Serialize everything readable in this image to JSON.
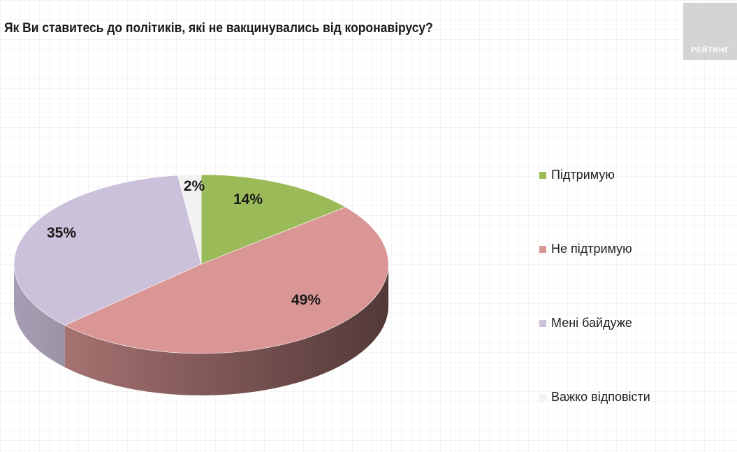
{
  "header": {
    "title": "Як Ви ставитесь до політиків, які не вакцинувались від коронавірусу?",
    "logo_text": "РЕЙТИНГ"
  },
  "chart_data": {
    "type": "pie",
    "style": "3d",
    "title": "Як Ви ставитесь до політиків, які не вакцинувались від коронавірусу?",
    "unit": "%",
    "legend_position": "right",
    "slices": [
      {
        "label": "Підтримую",
        "value": 14,
        "value_label": "14%",
        "color": "#9bbb59"
      },
      {
        "label": "Не підтримую",
        "value": 49,
        "value_label": "49%",
        "color": "#d99694"
      },
      {
        "label": "Мені байдуже",
        "value": 35,
        "value_label": "35%",
        "color": "#ccc1da"
      },
      {
        "label": "Важко відповісти",
        "value": 2,
        "value_label": "2%",
        "color": "#f2f2f2"
      }
    ]
  }
}
